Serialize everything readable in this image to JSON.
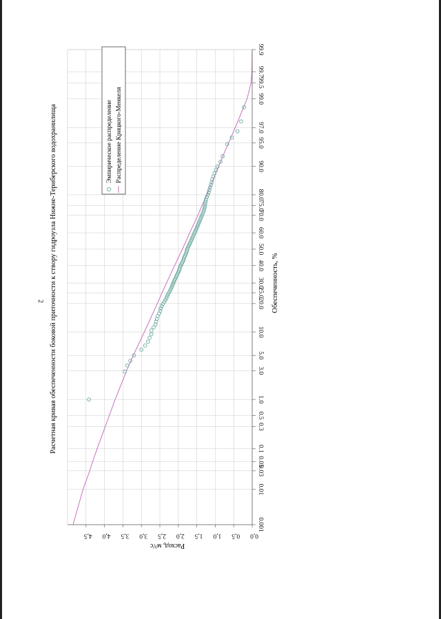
{
  "page_number": "2",
  "colors": {
    "empirical": "#6aa89e",
    "theoretical": "#c86fc3",
    "grid": "#c8c8c8",
    "axis": "#666666"
  },
  "chart_data": {
    "type": "scatter",
    "orientation": "rotated-90-cw",
    "title": "Расчетная кривая обеспеченности боковой приточности к створу гидроузла Нижне-Териберского водохранилища",
    "xlabel": "Обеспеченность, %",
    "ylabel": "Расход, м³/с",
    "x_scale": "probability",
    "ylim": [
      0,
      5
    ],
    "grid": true,
    "legend_position": "top-right",
    "x_ticks": [
      "0.001",
      "0.01",
      "0.03",
      "0.05",
      "0.1",
      "0.3",
      "0.5",
      "1.0",
      "3.0",
      "5.0",
      "10.0",
      "20.0",
      "25.0",
      "30.0",
      "40.0",
      "50.0",
      "60.0",
      "70.0",
      "75.0",
      "80.0",
      "90.0",
      "95.0",
      "97.0",
      "99.0",
      "99.5",
      "99.7",
      "99.9"
    ],
    "y_ticks": [
      "0,0",
      "0,5",
      "1,0",
      "1,5",
      "2,0",
      "2,5",
      "3,0",
      "3,5",
      "4,0",
      "4,5"
    ],
    "series": [
      {
        "name": "Эмпирическое распределение",
        "kind": "points",
        "x": [
          1.0,
          2.9,
          3.6,
          4.2,
          5.0,
          6.0,
          6.8,
          7.6,
          8.5,
          9.4,
          10.4,
          11.3,
          12.2,
          13.1,
          14.0,
          15.0,
          16.0,
          17.0,
          18.0,
          18.9,
          19.8,
          20.7,
          21.6,
          22.5,
          23.4,
          24.3,
          25.2,
          26.1,
          27.0,
          27.9,
          28.8,
          29.7,
          30.7,
          31.6,
          32.5,
          33.4,
          34.3,
          35.2,
          36.1,
          37.0,
          37.9,
          38.8,
          39.7,
          40.6,
          41.5,
          42.4,
          43.3,
          44.2,
          45.1,
          46.0,
          47.0,
          48.0,
          49.0,
          50.0,
          51.0,
          52.0,
          53.0,
          54.0,
          55.0,
          56.0,
          57.0,
          58.0,
          59.0,
          60.0,
          61.0,
          62.0,
          63.0,
          64.0,
          65.0,
          66.0,
          67.0,
          68.0,
          69.0,
          70.0,
          71.0,
          72.0,
          73.0,
          74.0,
          75.0,
          76.0,
          77.0,
          78.0,
          79.0,
          80.0,
          81.0,
          82.0,
          83.0,
          84.0,
          85.0,
          86.0,
          87.0,
          88.0,
          89.0,
          90.0,
          91.2,
          92.5,
          94.8,
          95.8,
          96.6,
          97.6,
          98.6
        ],
        "y": [
          4.42,
          3.45,
          3.38,
          3.3,
          3.2,
          3.0,
          2.9,
          2.82,
          2.78,
          2.73,
          2.73,
          2.67,
          2.62,
          2.6,
          2.58,
          2.56,
          2.52,
          2.49,
          2.48,
          2.45,
          2.42,
          2.38,
          2.35,
          2.32,
          2.3,
          2.28,
          2.25,
          2.22,
          2.2,
          2.18,
          2.16,
          2.14,
          2.12,
          2.1,
          2.08,
          2.06,
          2.04,
          2.02,
          2.0,
          1.98,
          1.97,
          1.96,
          1.94,
          1.92,
          1.9,
          1.88,
          1.86,
          1.85,
          1.84,
          1.82,
          1.8,
          1.78,
          1.77,
          1.76,
          1.74,
          1.72,
          1.7,
          1.68,
          1.66,
          1.64,
          1.62,
          1.6,
          1.58,
          1.56,
          1.54,
          1.52,
          1.5,
          1.48,
          1.46,
          1.44,
          1.42,
          1.4,
          1.38,
          1.36,
          1.34,
          1.32,
          1.3,
          1.29,
          1.28,
          1.27,
          1.26,
          1.25,
          1.23,
          1.2,
          1.18,
          1.16,
          1.14,
          1.12,
          1.1,
          1.08,
          1.05,
          1.02,
          0.98,
          0.94,
          0.86,
          0.8,
          0.68,
          0.55,
          0.4,
          0.3,
          0.22
        ]
      },
      {
        "name": "Распределение Крицкого-Менкеля",
        "kind": "line",
        "x": [
          0.001,
          0.01,
          0.03,
          0.05,
          0.1,
          0.3,
          0.5,
          1.0,
          3.0,
          5.0,
          10.0,
          20.0,
          25.0,
          30.0,
          40.0,
          50.0,
          60.0,
          70.0,
          75.0,
          80.0,
          90.0,
          95.0,
          97.0,
          99.0,
          99.5,
          99.7,
          99.9
        ],
        "y": [
          4.85,
          4.58,
          4.4,
          4.32,
          4.2,
          3.98,
          3.87,
          3.71,
          3.4,
          3.22,
          2.92,
          2.57,
          2.44,
          2.32,
          2.1,
          1.89,
          1.69,
          1.47,
          1.36,
          1.23,
          0.91,
          0.64,
          0.46,
          0.14,
          0.03,
          0.01,
          0.0
        ]
      }
    ]
  }
}
